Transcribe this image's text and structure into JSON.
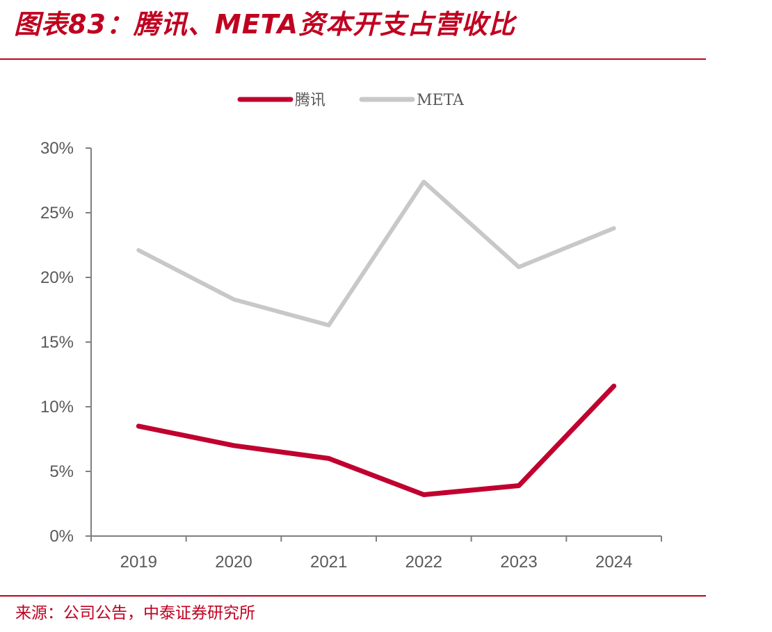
{
  "title": "图表83：腾讯、META资本开支占营收比",
  "source": "来源：公司公告，中泰证券研究所",
  "colors": {
    "accent": "#c00020",
    "tencent": "#c0002f",
    "meta": "#c8c8c8",
    "axis": "#7f7f7f"
  },
  "chart_data": {
    "type": "line",
    "title": "",
    "xlabel": "",
    "ylabel": "",
    "categories": [
      "2019",
      "2020",
      "2021",
      "2022",
      "2023",
      "2024"
    ],
    "ylim": [
      0,
      30
    ],
    "yticks": [
      "0%",
      "5%",
      "10%",
      "15%",
      "20%",
      "25%",
      "30%"
    ],
    "grid": false,
    "legend": "top-center",
    "series": [
      {
        "name": "腾讯",
        "values": [
          8.5,
          7.0,
          6.0,
          3.2,
          3.9,
          11.6
        ]
      },
      {
        "name": "META",
        "values": [
          22.1,
          18.3,
          16.3,
          27.4,
          20.8,
          23.8
        ]
      }
    ]
  }
}
